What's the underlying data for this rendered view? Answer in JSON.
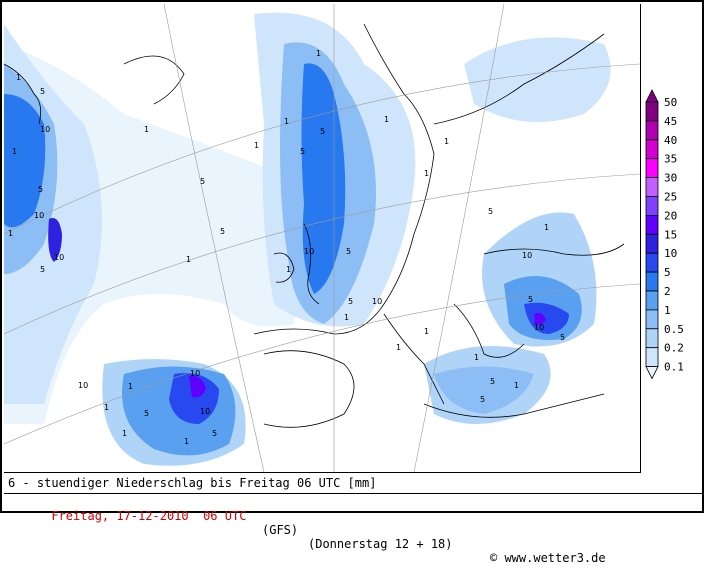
{
  "footer": {
    "line1": "6 - stuendiger Niederschlag bis Freitag 06 UTC [mm]",
    "date": "Freitag, 17-12-2010  06 UTC",
    "model": "(GFS)",
    "run": "(Donnerstag 12 + 18)",
    "copyright": "www.wetter3.de"
  },
  "legend": {
    "levels": [
      "50",
      "45",
      "40",
      "35",
      "30",
      "25",
      "20",
      "15",
      "10",
      "5",
      "2",
      "1",
      "0.5",
      "0.2",
      "0.1"
    ],
    "colors": [
      "#800080",
      "#b000b0",
      "#d000d0",
      "#ff00ff",
      "#c060ff",
      "#8040ff",
      "#6000ff",
      "#3020e0",
      "#2848f0",
      "#2878f0",
      "#5aa0f0",
      "#8cbef5",
      "#b0d4f8",
      "#cfe5fb",
      "#e9f4fd"
    ]
  },
  "map": {
    "contour_labels": [
      "1",
      "5",
      "10",
      "1",
      "5",
      "10",
      "1",
      "5",
      "10",
      "1",
      "5",
      "1",
      "1",
      "5",
      "10",
      "5",
      "1",
      "10",
      "5",
      "1",
      "1",
      "1",
      "5",
      "1",
      "5",
      "10",
      "1",
      "5",
      "10",
      "5",
      "1",
      "10",
      "10",
      "5",
      "1",
      "1",
      "5",
      "1",
      "1",
      "5",
      "1",
      "5",
      "1",
      "10",
      "1",
      "5",
      "1",
      "1"
    ]
  }
}
